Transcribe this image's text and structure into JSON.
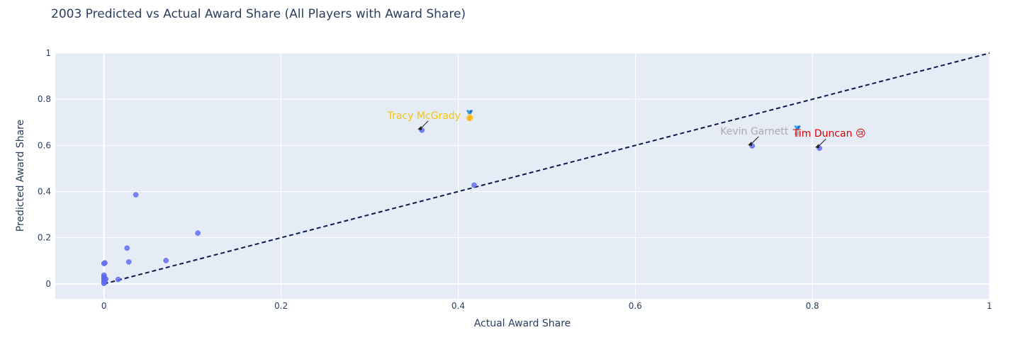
{
  "chart_data": {
    "type": "scatter",
    "title": "2003 Predicted vs Actual Award Share (All Players with Award Share)",
    "xlabel": "Actual Award Share",
    "ylabel": "Predicted Award Share",
    "xlim": [
      -0.055,
      1.0
    ],
    "ylim": [
      -0.065,
      1.0
    ],
    "x_ticks": [
      {
        "v": 0,
        "label": "0"
      },
      {
        "v": 0.2,
        "label": "0.2"
      },
      {
        "v": 0.4,
        "label": "0.4"
      },
      {
        "v": 0.6,
        "label": "0.6"
      },
      {
        "v": 0.8,
        "label": "0.8"
      },
      {
        "v": 1,
        "label": "1"
      }
    ],
    "y_ticks": [
      {
        "v": 0,
        "label": "0"
      },
      {
        "v": 0.2,
        "label": "0.2"
      },
      {
        "v": 0.4,
        "label": "0.4"
      },
      {
        "v": 0.6,
        "label": "0.6"
      },
      {
        "v": 0.8,
        "label": "0.8"
      },
      {
        "v": 1,
        "label": "1"
      }
    ],
    "grid": true,
    "reference_line": {
      "x": [
        0,
        1
      ],
      "y": [
        0,
        1
      ],
      "style": "dashed",
      "color": "#0d1b4a"
    },
    "marker_color": "#636efa",
    "plot_bg": "#e5ecf6",
    "points": [
      {
        "x": 0.359,
        "y": 0.666
      },
      {
        "x": 0.418,
        "y": 0.428
      },
      {
        "x": 0.732,
        "y": 0.598
      },
      {
        "x": 0.808,
        "y": 0.588
      },
      {
        "x": 0.036,
        "y": 0.386
      },
      {
        "x": 0.106,
        "y": 0.22
      },
      {
        "x": 0.026,
        "y": 0.155
      },
      {
        "x": 0.07,
        "y": 0.101
      },
      {
        "x": 0.028,
        "y": 0.095
      },
      {
        "x": 0.016,
        "y": 0.019
      },
      {
        "x": 0.001,
        "y": 0.091
      },
      {
        "x": 0.0,
        "y": 0.088
      },
      {
        "x": 0.0,
        "y": 0.038
      },
      {
        "x": 0.0,
        "y": 0.03
      },
      {
        "x": 0.0,
        "y": 0.024
      },
      {
        "x": 0.002,
        "y": 0.021
      },
      {
        "x": 0.0,
        "y": 0.016
      },
      {
        "x": 0.001,
        "y": 0.011
      },
      {
        "x": 0.0,
        "y": 0.006
      },
      {
        "x": 0.0,
        "y": 0.002
      }
    ],
    "annotations": [
      {
        "text": "Tracy McGrady 🥇",
        "x": 0.359,
        "y": 0.666,
        "color": "#f2c40f"
      },
      {
        "text": "Kevin Garnett 🥈",
        "x": 0.732,
        "y": 0.598,
        "color": "#aaaaaa"
      },
      {
        "text": "Tim Duncan 😢",
        "x": 0.808,
        "y": 0.588,
        "color": "#e00000"
      }
    ]
  }
}
